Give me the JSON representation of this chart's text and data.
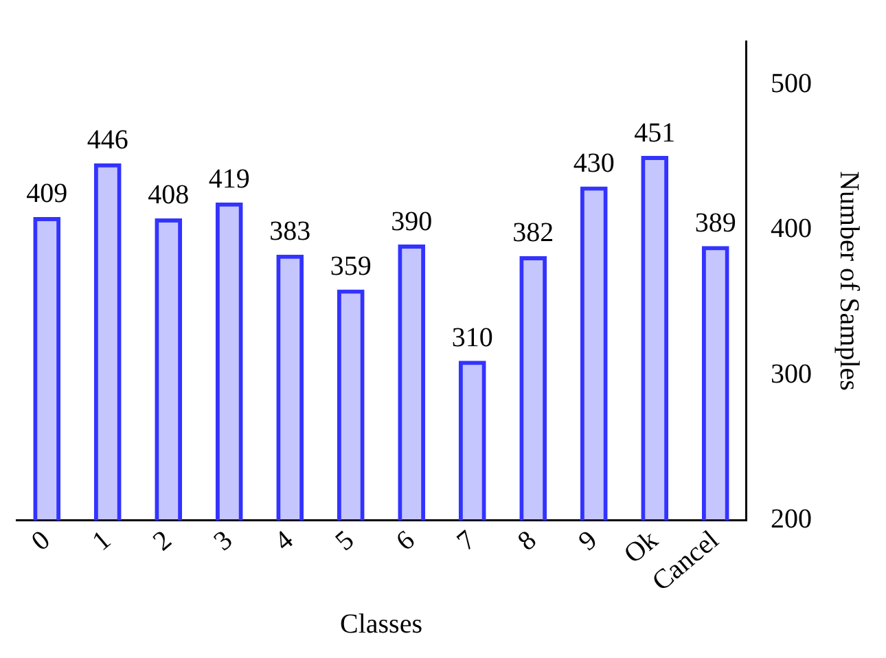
{
  "chart_data": {
    "type": "bar",
    "xlabel": "Classes",
    "ylabel": "Number of Samples",
    "categories": [
      "0",
      "1",
      "2",
      "3",
      "4",
      "5",
      "6",
      "7",
      "8",
      "9",
      "Ok",
      "Cancel"
    ],
    "values": [
      409,
      446,
      408,
      419,
      383,
      359,
      390,
      310,
      382,
      430,
      451,
      389
    ],
    "color": "#3333ff",
    "ylim": [
      200,
      530
    ],
    "yticks": [
      200,
      300,
      400,
      500
    ],
    "grid": false,
    "data_labels": true
  }
}
